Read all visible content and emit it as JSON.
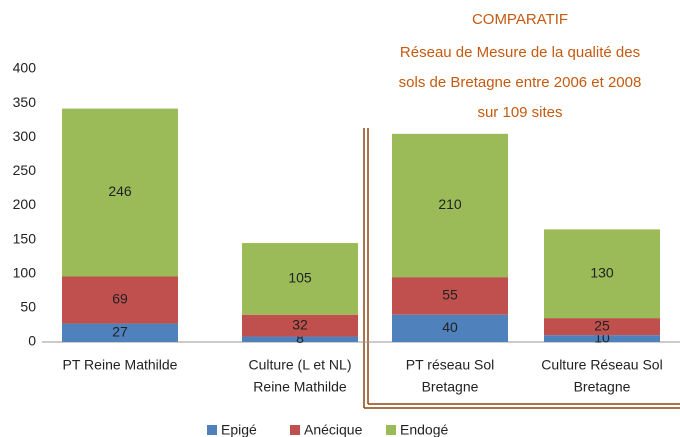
{
  "chart_data": {
    "type": "stacked_bar",
    "title": "COMPARATIF",
    "subtitle": [
      "Réseau de Mesure de la qualité des",
      "sols de Bretagne entre 2006 et 2008",
      "sur 109 sites"
    ],
    "categories": [
      [
        "PT Reine Mathilde"
      ],
      [
        "Culture (L et NL)",
        "Reine Mathilde"
      ],
      [
        "PT réseau Sol",
        "Bretagne"
      ],
      [
        "Culture  Réseau Sol",
        "Bretagne"
      ]
    ],
    "series": [
      {
        "name": "Epigé",
        "color": "#4f81bd",
        "values": [
          27,
          8,
          40,
          10
        ]
      },
      {
        "name": "Anécique",
        "color": "#c0504d",
        "values": [
          69,
          32,
          55,
          25
        ]
      },
      {
        "name": "Endogé",
        "color": "#9bbb59",
        "values": [
          246,
          105,
          210,
          130
        ]
      }
    ],
    "ylim": [
      0,
      400
    ],
    "yticks": [
      0,
      50,
      100,
      150,
      200,
      250,
      300,
      350,
      400
    ],
    "grid": false,
    "legend": "bottom"
  }
}
